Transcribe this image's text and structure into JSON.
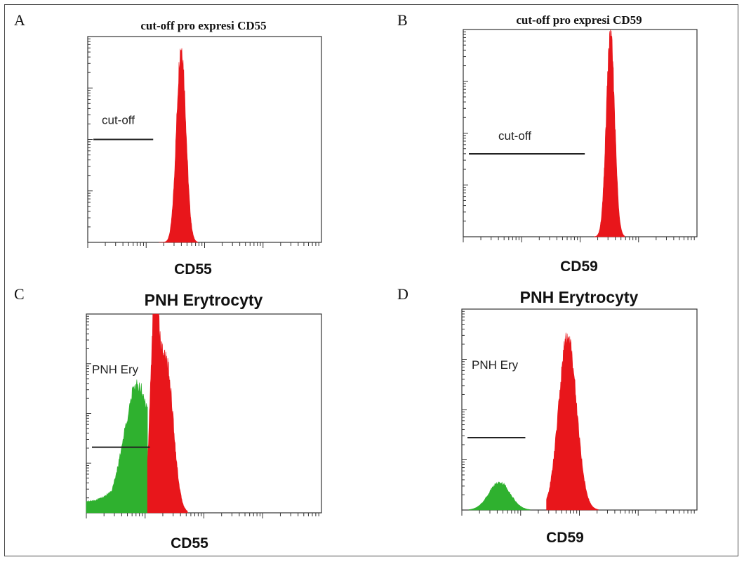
{
  "panels": {
    "A": {
      "letter": "A",
      "title": "cut-off pro expresi CD55",
      "xlabel": "CD55",
      "annotation": "cut-off"
    },
    "B": {
      "letter": "B",
      "title": "cut-off pro expresi CD59",
      "xlabel": "CD59",
      "annotation": "cut-off"
    },
    "C": {
      "letter": "C",
      "title": "PNH Erytrocyty",
      "xlabel": "CD55",
      "annotation": "PNH Ery"
    },
    "D": {
      "letter": "D",
      "title": "PNH Erytrocyty",
      "xlabel": "CD59",
      "annotation": "PNH Ery"
    }
  },
  "chart_data": [
    {
      "type": "area",
      "panel": "A",
      "title": "cut-off pro expresi CD55",
      "xlabel": "CD55",
      "ylabel": "",
      "colors": {
        "normal": "#e8161b"
      },
      "series": [
        {
          "color": "#e8161b",
          "peaks": [
            [
              0.4,
              0.96,
              0.02
            ]
          ],
          "range": [
            0.305,
            0.47
          ]
        }
      ],
      "cutoff": {
        "position": 0.28,
        "level": 0.5,
        "label": "cut-off"
      }
    },
    {
      "type": "area",
      "panel": "B",
      "title": "cut-off pro expresi CD59",
      "xlabel": "CD59",
      "ylabel": "",
      "colors": {
        "normal": "#e8161b"
      },
      "series": [
        {
          "color": "#e8161b",
          "peaks": [
            [
              0.63,
              0.98,
              0.018
            ]
          ],
          "range": [
            0.56,
            0.69
          ]
        }
      ],
      "cutoff": {
        "position": 0.52,
        "level": 0.4,
        "label": "cut-off"
      }
    },
    {
      "type": "area",
      "panel": "C",
      "title": "PNH Erytrocyty",
      "xlabel": "CD55",
      "ylabel": "",
      "colors": {
        "pnh": "#2fb12f",
        "normal": "#e8161b"
      },
      "series": [
        {
          "color": "#2fb12f",
          "peaks": [
            [
              0.22,
              0.65,
              0.06
            ]
          ],
          "range": [
            0.0,
            0.26
          ]
        },
        {
          "color": "#e8161b",
          "peaks": [
            [
              0.29,
              0.92,
              0.018
            ],
            [
              0.34,
              0.76,
              0.03
            ]
          ],
          "range": [
            0.26,
            0.43
          ]
        }
      ],
      "cutoff": {
        "position": 0.27,
        "level": 0.33,
        "label": "PNH Ery"
      }
    },
    {
      "type": "area",
      "panel": "D",
      "title": "PNH Erytrocyty",
      "xlabel": "CD59",
      "ylabel": "",
      "colors": {
        "pnh": "#2fb12f",
        "normal": "#e8161b"
      },
      "series": [
        {
          "color": "#2fb12f",
          "peaks": [
            [
              0.16,
              0.14,
              0.045
            ]
          ],
          "range": [
            0.03,
            0.29
          ]
        },
        {
          "color": "#e8161b",
          "peaks": [
            [
              0.45,
              0.87,
              0.038
            ]
          ],
          "range": [
            0.36,
            0.58
          ]
        }
      ],
      "cutoff": {
        "position": 0.27,
        "level": 0.36,
        "label": "PNH Ery"
      }
    }
  ]
}
